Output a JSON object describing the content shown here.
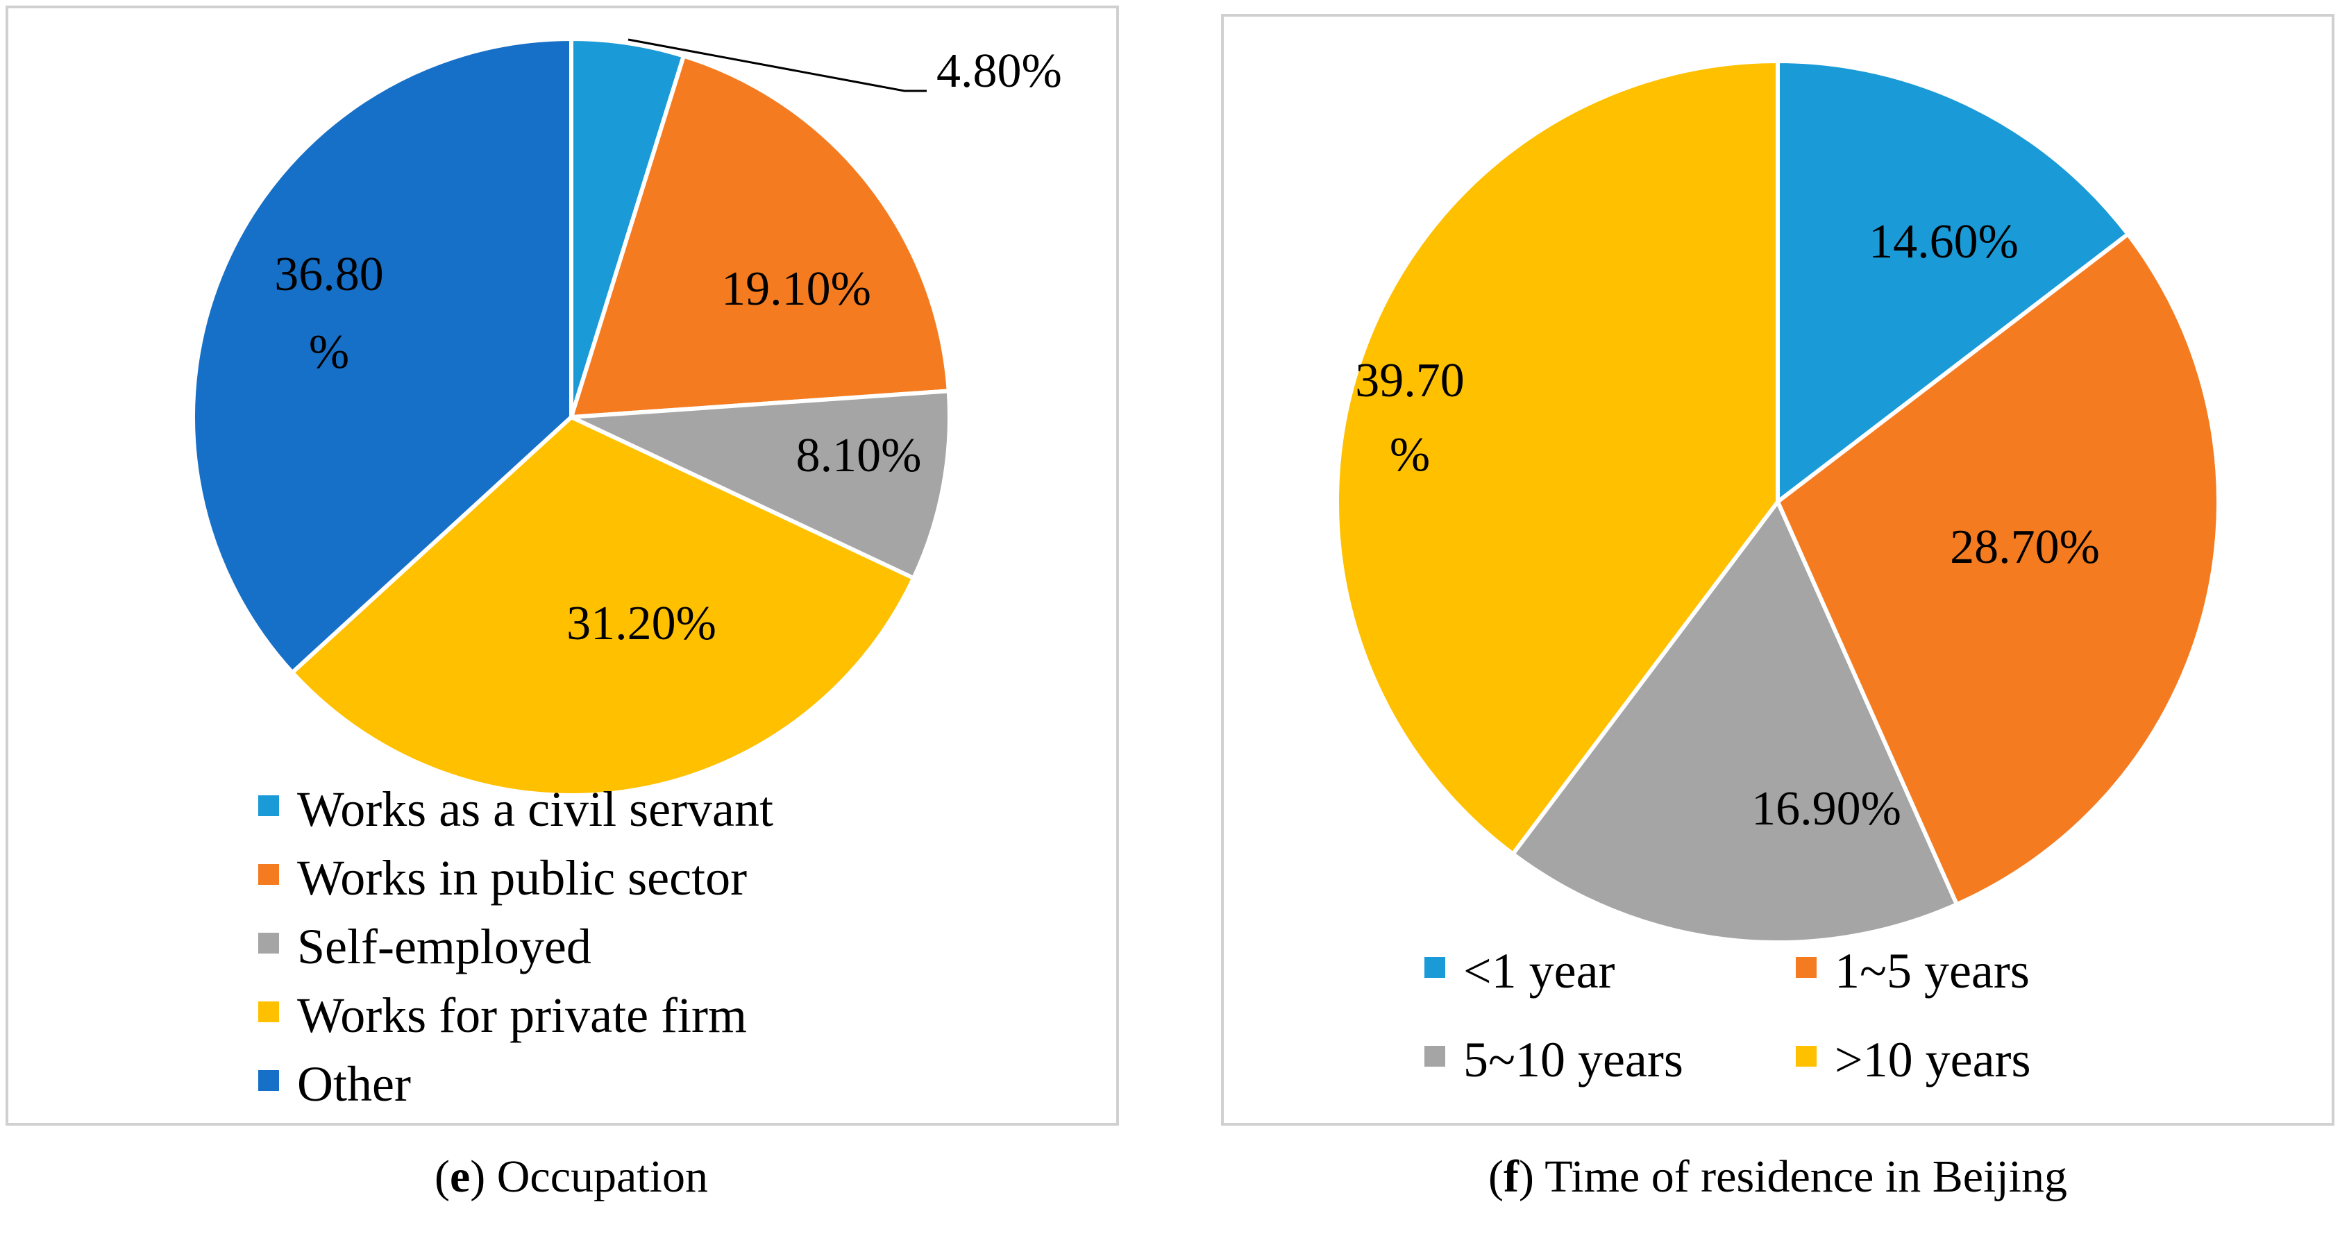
{
  "chart_data": [
    {
      "type": "pie",
      "title": "Occupation",
      "caption_letter": "e",
      "caption_open": "(",
      "caption_close": ") ",
      "caption_text": "Occupation",
      "categories": [
        "Works as a civil servant",
        "Works in public sector",
        "Self-employed",
        "Works for private firm",
        "Other"
      ],
      "values": [
        4.8,
        19.1,
        8.1,
        31.2,
        36.8
      ],
      "labels": [
        "4.80%",
        "19.10%",
        "8.10%",
        "31.20%",
        [
          "36.80",
          "%"
        ]
      ],
      "colors": [
        "#1a9ad6",
        "#f47b20",
        "#a5a5a5",
        "#ffc000",
        "#1770c8"
      ],
      "legend_position": "bottom"
    },
    {
      "type": "pie",
      "title": "Time of residence in Beijing",
      "caption_letter": "f",
      "caption_open": "(",
      "caption_close": ") ",
      "caption_text": "Time of residence in Beijing",
      "categories": [
        "<1 year",
        "1~5 years",
        "5~10 years",
        ">10 years"
      ],
      "values": [
        14.6,
        28.7,
        16.9,
        39.7
      ],
      "labels": [
        "14.60%",
        "28.70%",
        "16.90%",
        [
          "39.70",
          "%"
        ]
      ],
      "colors": [
        "#1a9ad6",
        "#f47b20",
        "#a5a5a5",
        "#ffc000"
      ],
      "legend_position": "bottom"
    }
  ]
}
